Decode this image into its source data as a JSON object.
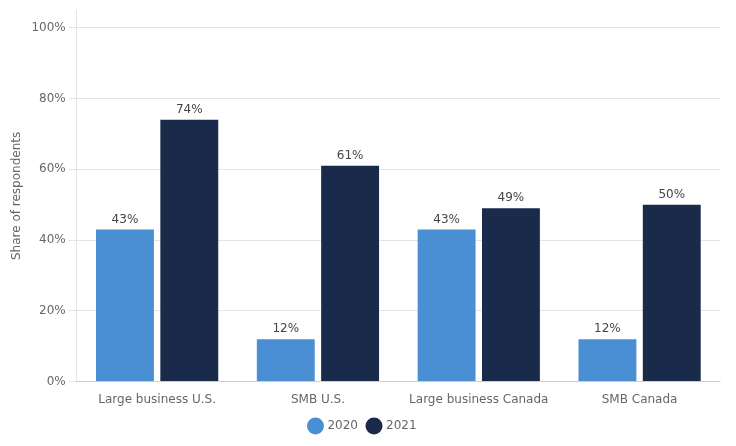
{
  "chart_data": {
    "type": "bar",
    "categories": [
      "Large business U.S.",
      "SMB U.S.",
      "Large business Canada",
      "SMB Canada"
    ],
    "series": [
      {
        "name": "2020",
        "color": "#4a8fd4",
        "values": [
          43,
          12,
          43,
          12
        ],
        "value_labels": [
          "43%",
          "12%",
          "43%",
          "12%"
        ]
      },
      {
        "name": "2021",
        "color": "#1a2a4a",
        "values": [
          74,
          61,
          49,
          50
        ],
        "value_labels": [
          "74%",
          "61%",
          "49%",
          "50%"
        ]
      }
    ],
    "ylabel": "Share of respondents",
    "ylim": [
      0,
      105
    ],
    "yticks": [
      {
        "value": 0,
        "label": "0%"
      },
      {
        "value": 20,
        "label": "20%"
      },
      {
        "value": 40,
        "label": "40%"
      },
      {
        "value": 60,
        "label": "60%"
      },
      {
        "value": 80,
        "label": "80%"
      },
      {
        "value": 100,
        "label": "100%"
      }
    ],
    "grid": true,
    "legend": "bottom",
    "data_labels": true
  }
}
